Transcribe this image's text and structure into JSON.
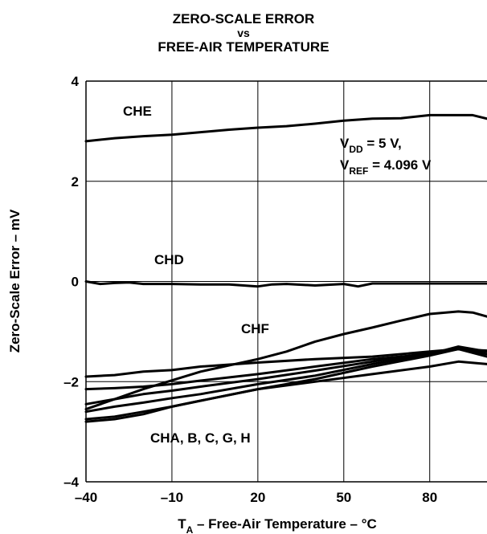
{
  "chart_data": {
    "type": "line",
    "title": "ZERO-SCALE ERROR",
    "title_vs": "vs",
    "subtitle": "FREE-AIR TEMPERATURE",
    "xlabel": "T",
    "xlabel_sub": "A",
    "xlabel_rest": " – Free-Air Temperature – °C",
    "ylabel": "Zero-Scale Error – mV",
    "xlim": [
      -40,
      100
    ],
    "ylim": [
      -4,
      4
    ],
    "xticks": [
      -40,
      -10,
      20,
      50,
      80
    ],
    "xtick_labels": [
      "–40",
      "–10",
      "20",
      "50",
      "80"
    ],
    "yticks": [
      4,
      2,
      0,
      -2,
      -4
    ],
    "ytick_labels": [
      "4",
      "2",
      "0",
      "–2",
      "–4"
    ],
    "grid": true,
    "condition_lines": [
      {
        "base": "V",
        "sub": "DD",
        "rest": " = 5 V,"
      },
      {
        "base": "V",
        "sub": "REF",
        "rest": " = 4.096 V"
      }
    ],
    "series": [
      {
        "name": "CHE",
        "x": [
          -40,
          -30,
          -20,
          -10,
          0,
          10,
          20,
          30,
          40,
          50,
          60,
          70,
          80,
          90,
          95,
          100
        ],
        "y": [
          2.8,
          2.86,
          2.9,
          2.93,
          2.98,
          3.03,
          3.07,
          3.1,
          3.15,
          3.21,
          3.25,
          3.26,
          3.32,
          3.32,
          3.32,
          3.25
        ]
      },
      {
        "name": "CHD",
        "x": [
          -40,
          -35,
          -30,
          -25,
          -20,
          -10,
          0,
          10,
          20,
          25,
          30,
          40,
          50,
          55,
          60,
          70,
          80,
          90,
          100
        ],
        "y": [
          0,
          -0.05,
          -0.03,
          -0.02,
          -0.05,
          -0.05,
          -0.06,
          -0.06,
          -0.1,
          -0.06,
          -0.05,
          -0.08,
          -0.05,
          -0.1,
          -0.04,
          -0.04,
          -0.04,
          -0.04,
          -0.04
        ]
      },
      {
        "name": "CHF",
        "x": [
          -40,
          -20,
          0,
          20,
          30,
          40,
          50,
          60,
          70,
          80,
          90,
          95,
          100
        ],
        "y": [
          -2.55,
          -2.15,
          -1.8,
          -1.55,
          -1.4,
          -1.2,
          -1.05,
          -0.92,
          -0.78,
          -0.65,
          -0.6,
          -0.62,
          -0.7
        ]
      },
      {
        "name": "",
        "x": [
          -40,
          -30,
          -20,
          -10,
          0,
          20,
          40,
          60,
          80,
          90,
          100
        ],
        "y": [
          -1.9,
          -1.87,
          -1.8,
          -1.77,
          -1.7,
          -1.62,
          -1.55,
          -1.5,
          -1.4,
          -1.35,
          -1.38
        ]
      },
      {
        "name": "",
        "x": [
          -40,
          -30,
          -20,
          -10,
          0,
          20,
          40,
          60,
          80,
          90,
          100
        ],
        "y": [
          -2.15,
          -2.13,
          -2.1,
          -2.05,
          -1.98,
          -1.85,
          -1.7,
          -1.55,
          -1.45,
          -1.35,
          -1.4
        ]
      },
      {
        "name": "",
        "x": [
          -40,
          -30,
          -20,
          -10,
          0,
          20,
          40,
          60,
          80,
          90,
          100
        ],
        "y": [
          -2.45,
          -2.35,
          -2.25,
          -2.18,
          -2.1,
          -1.95,
          -1.78,
          -1.6,
          -1.42,
          -1.35,
          -1.45
        ]
      },
      {
        "name": "",
        "x": [
          -40,
          -30,
          -20,
          -10,
          0,
          20,
          40,
          60,
          80,
          90,
          100
        ],
        "y": [
          -2.6,
          -2.5,
          -2.42,
          -2.33,
          -2.25,
          -2.05,
          -1.88,
          -1.65,
          -1.45,
          -1.3,
          -1.4
        ]
      },
      {
        "name": "",
        "x": [
          -40,
          -30,
          -20,
          -10,
          0,
          20,
          40,
          60,
          80,
          90,
          100
        ],
        "y": [
          -2.75,
          -2.7,
          -2.6,
          -2.5,
          -2.38,
          -2.15,
          -1.95,
          -1.7,
          -1.48,
          -1.35,
          -1.5
        ]
      },
      {
        "name": "",
        "x": [
          -40,
          -30,
          -20,
          -10,
          0,
          20,
          40,
          60,
          80,
          90,
          100
        ],
        "y": [
          -2.8,
          -2.75,
          -2.65,
          -2.5,
          -2.38,
          -2.15,
          -2.0,
          -1.85,
          -1.7,
          -1.6,
          -1.65
        ]
      }
    ],
    "annotations": [
      "CHE",
      "CHD",
      "CHF",
      "CHA, B, C, G, H"
    ],
    "colors": {
      "line": "#000000",
      "grid": "#000000",
      "background": "#ffffff"
    }
  }
}
